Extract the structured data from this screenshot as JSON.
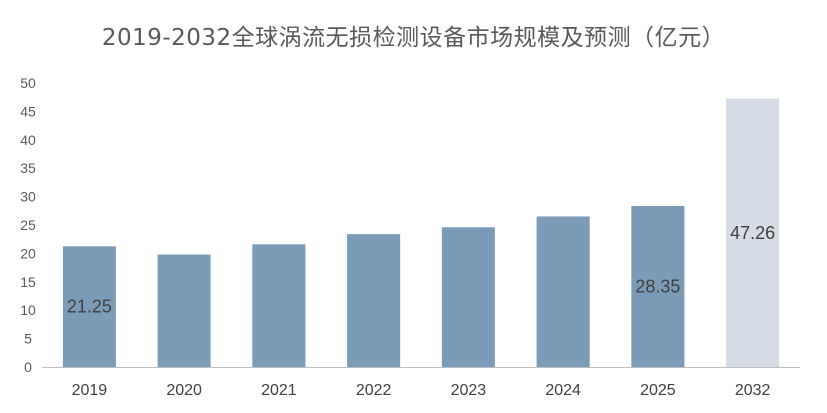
{
  "chart_data": {
    "type": "bar",
    "title": "2019-2032全球涡流无损检测设备市场规模及预测（亿元）",
    "categories": [
      "2019",
      "2020",
      "2021",
      "2022",
      "2023",
      "2024",
      "2025",
      "2032"
    ],
    "values": [
      21.25,
      19.8,
      21.6,
      23.4,
      24.6,
      26.5,
      28.35,
      47.26
    ],
    "data_labels": [
      "21.25",
      "",
      "",
      "",
      "",
      "",
      "28.35",
      "47.26"
    ],
    "forecast": [
      false,
      false,
      false,
      false,
      false,
      false,
      false,
      true
    ],
    "ylim": [
      0,
      50
    ],
    "yticks": [
      0,
      5,
      10,
      15,
      20,
      25,
      30,
      35,
      40,
      45,
      50
    ],
    "xlabel": "",
    "ylabel": "",
    "grid": false,
    "colors": {
      "actual": "#7a9cb8",
      "forecast": "#d6dce6",
      "axis": "#bfbfbf"
    }
  }
}
